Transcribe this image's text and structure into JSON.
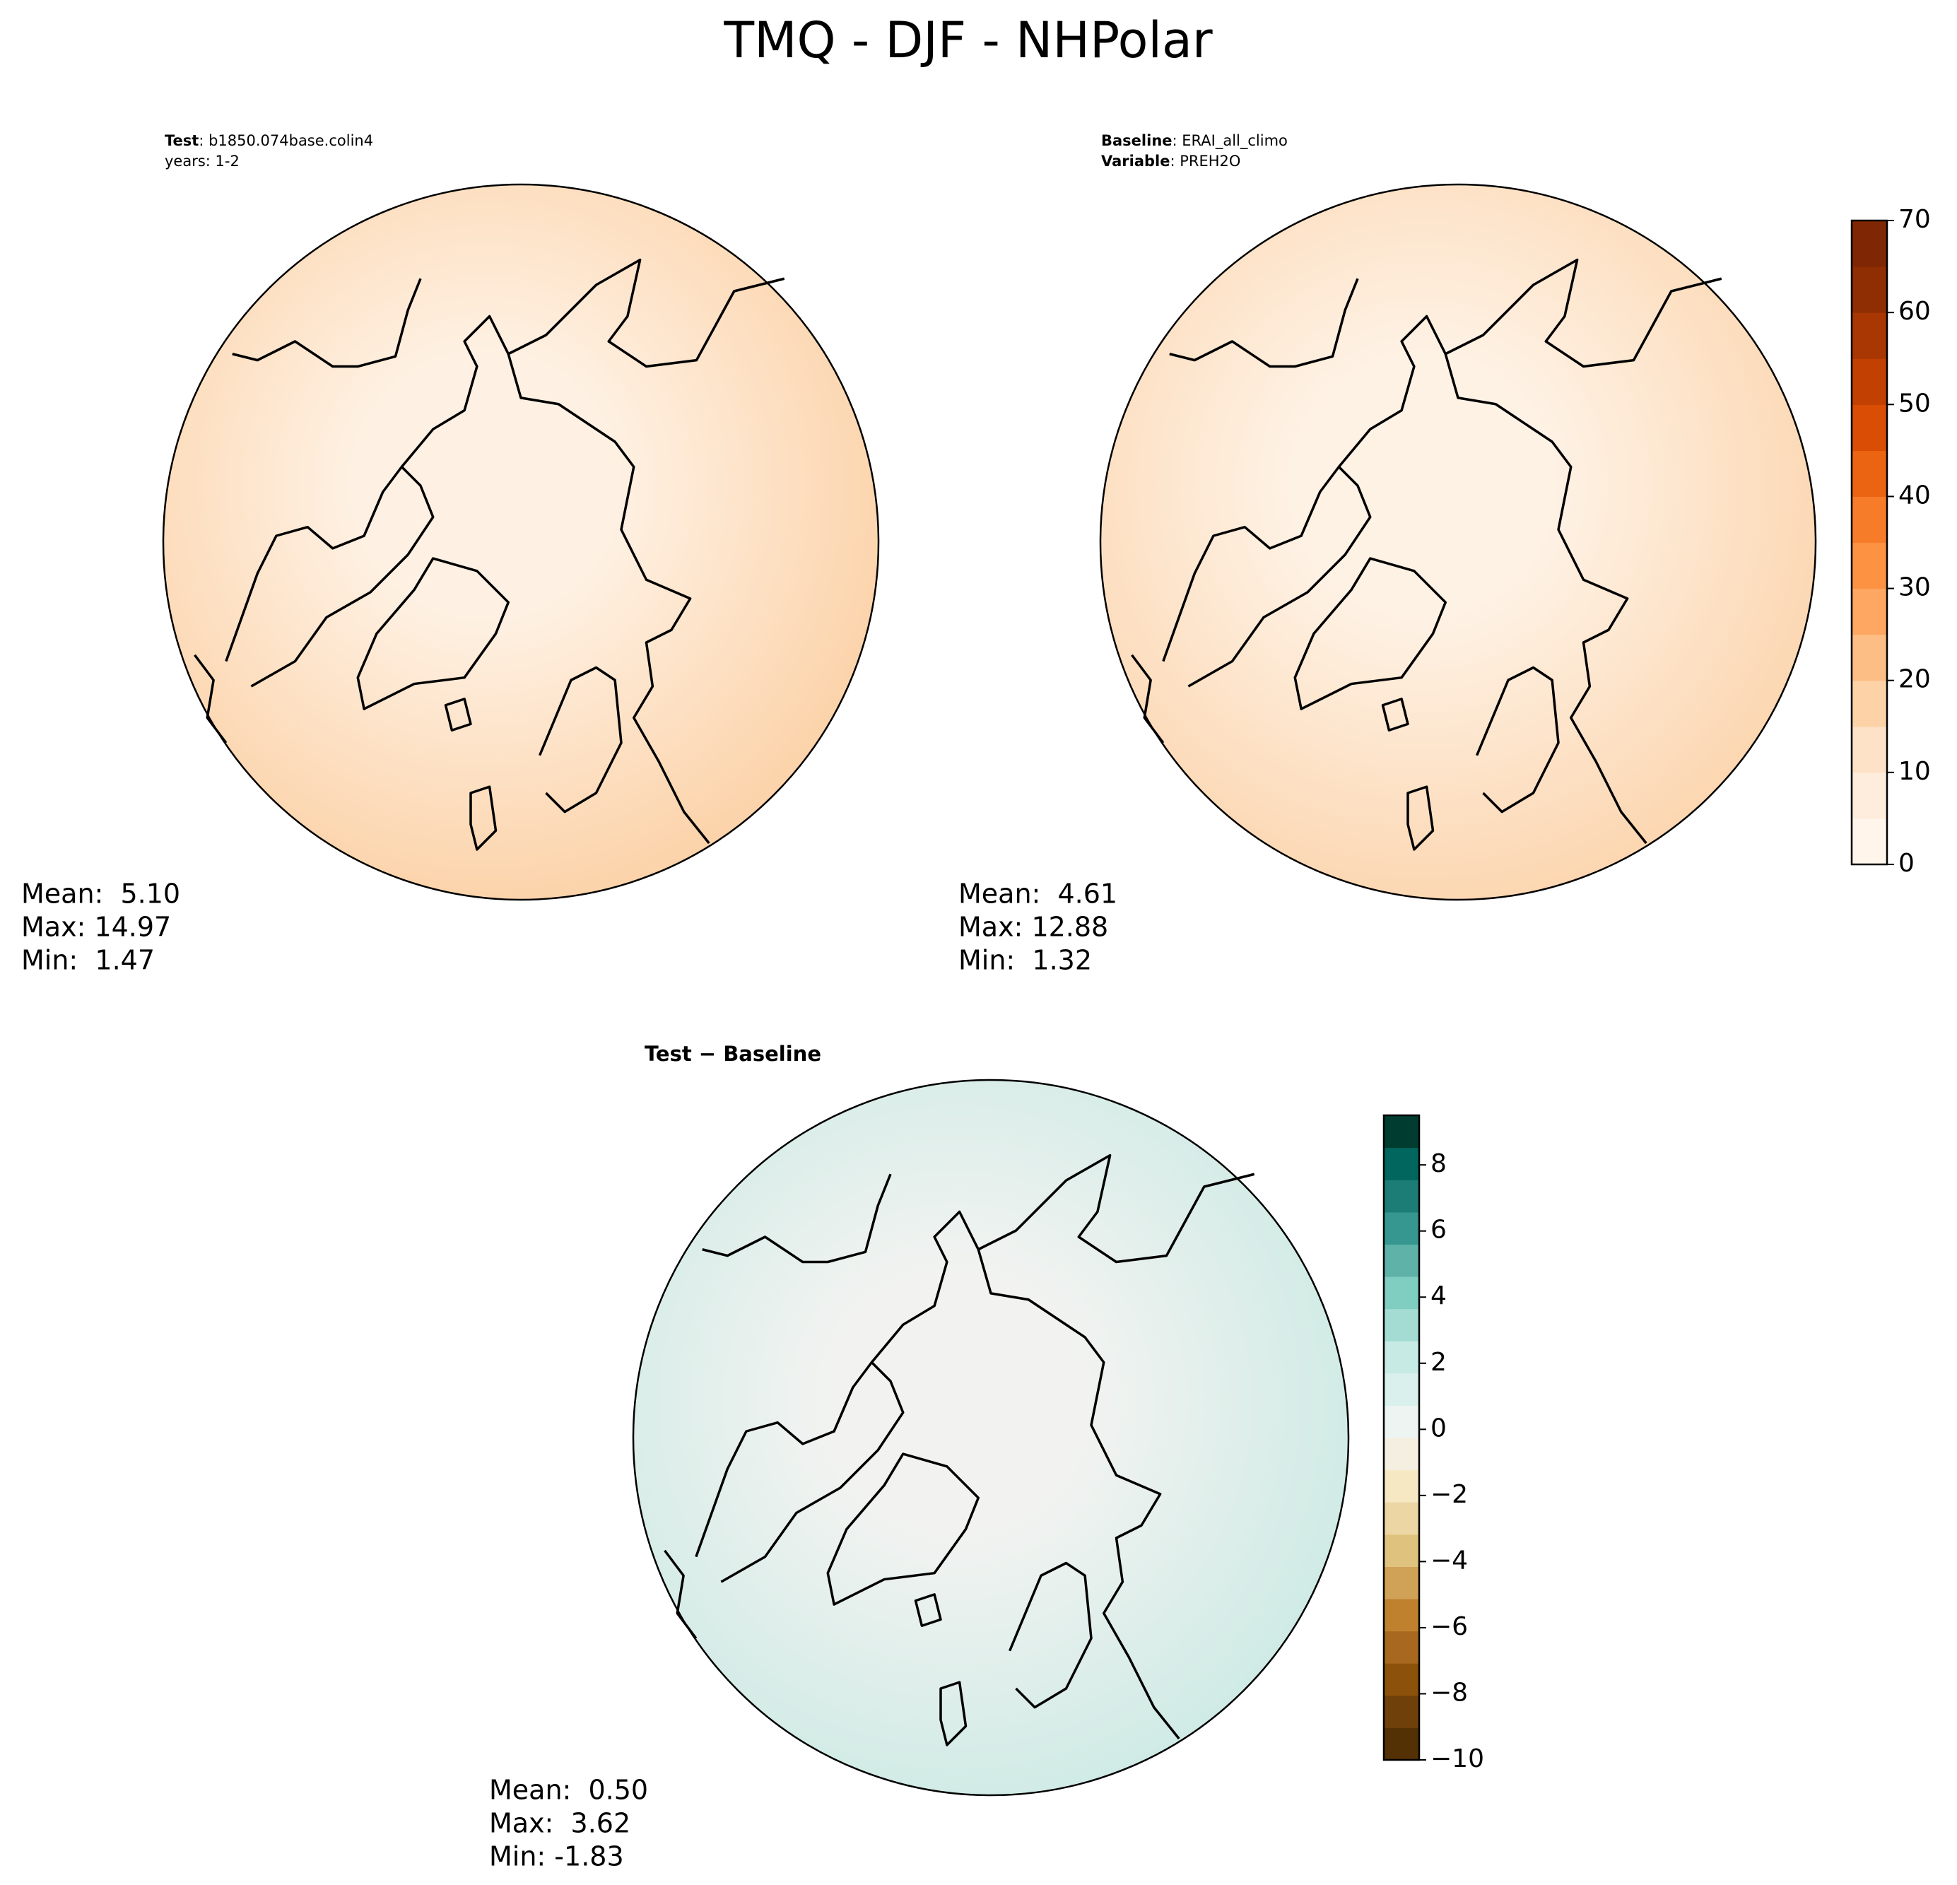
{
  "title": "TMQ - DJF - NHPolar",
  "panels": [
    {
      "header": [
        {
          "label": "Test",
          "text": ": b1850.074base.colin4"
        },
        {
          "text": "years: 1-2"
        }
      ],
      "stats": [
        "Mean:  5.10",
        "Max: 14.97",
        "Min:  1.47"
      ]
    },
    {
      "header": [
        {
          "label": "Baseline",
          "text": ": ERAI_all_climo"
        },
        {
          "label": "Variable",
          "text": ": PREH2O"
        }
      ],
      "stats": [
        "Mean:  4.61",
        "Max: 12.88",
        "Min:  1.32"
      ]
    },
    {
      "header": [
        {
          "label": "Test − Baseline"
        }
      ],
      "stats": [
        "Mean:  0.50",
        "Max:  3.62",
        "Min: -1.83"
      ]
    }
  ],
  "colorbars": [
    {
      "lim": [
        0,
        70
      ],
      "ticks": [
        0,
        10,
        20,
        30,
        40,
        50,
        60,
        70
      ],
      "colors": [
        "#fff5eb",
        "#feeddc",
        "#fee2c7",
        "#fdd2a7",
        "#fdbe85",
        "#fda762",
        "#fd9243",
        "#f67c29",
        "#ea6412",
        "#d94d04",
        "#c24002",
        "#a83703",
        "#8f2e03",
        "#7f2704"
      ]
    },
    {
      "lim": [
        -10,
        9.5
      ],
      "ticks": [
        {
          "value": -10,
          "label": "−10"
        },
        {
          "value": -8,
          "label": "−8"
        },
        {
          "value": -6,
          "label": "−6"
        },
        {
          "value": -4,
          "label": "−4"
        },
        {
          "value": -2,
          "label": "−2"
        },
        0,
        2,
        4,
        6,
        8
      ],
      "colors": [
        "#543005",
        "#6f400a",
        "#8c510a",
        "#a86820",
        "#bf812d",
        "#d0a257",
        "#dfc27d",
        "#ebd6a4",
        "#f6e8c3",
        "#f5efe1",
        "#eef4f2",
        "#d9f0ec",
        "#c7eae5",
        "#a4dcd3",
        "#80cdc1",
        "#5fb2a8",
        "#35978f",
        "#1b7d75",
        "#01665e",
        "#003c30"
      ]
    }
  ]
}
